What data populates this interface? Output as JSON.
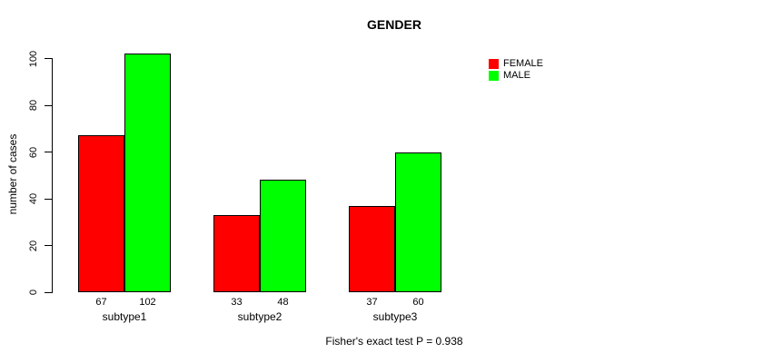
{
  "chart_data": {
    "type": "bar",
    "title": "GENDER",
    "ylabel": "number of cases",
    "xlabel": "",
    "categories": [
      "subtype1",
      "subtype2",
      "subtype3"
    ],
    "series": [
      {
        "name": "FEMALE",
        "color": "#ff0000",
        "values": [
          67,
          33,
          37
        ]
      },
      {
        "name": "MALE",
        "color": "#00ff00",
        "values": [
          102,
          48,
          60
        ]
      }
    ],
    "show_values_under_bars": true,
    "yticks": [
      0,
      20,
      40,
      60,
      80,
      100
    ],
    "ylim": [
      0,
      105
    ],
    "grid": false,
    "legend": {
      "position": "top-right",
      "entries": [
        "FEMALE",
        "MALE"
      ]
    },
    "annotation": "Fisher's exact test P = 0.938",
    "colors": {
      "background": "#ffffff",
      "axis": "#000000",
      "bar_border": "#000000",
      "text": "#000000"
    }
  }
}
